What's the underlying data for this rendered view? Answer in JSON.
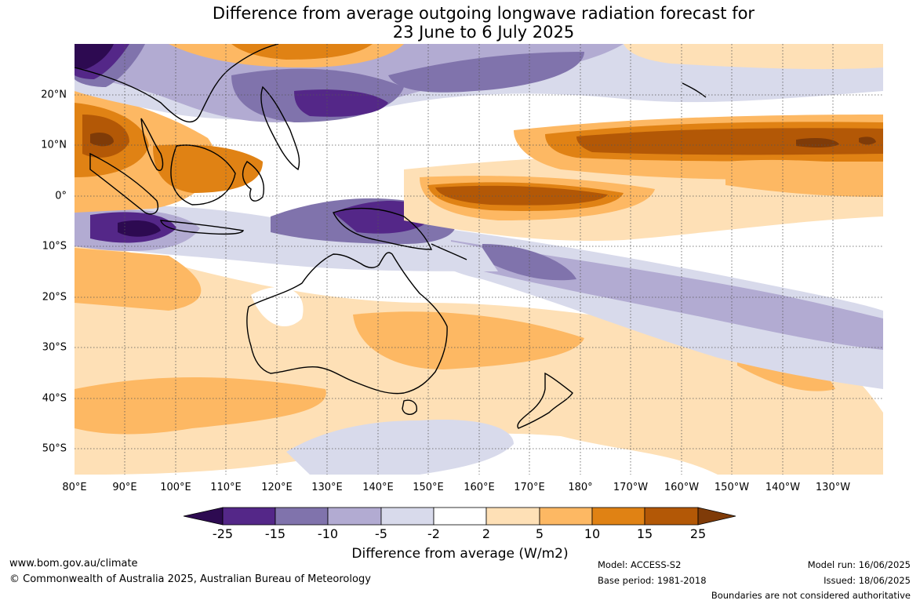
{
  "title": {
    "line1": "Difference from average outgoing longwave radiation forecast for",
    "line2": "23 June to 6 July 2025"
  },
  "map": {
    "lat_labels": [
      "20°N",
      "10°N",
      "0°",
      "10°S",
      "20°S",
      "30°S",
      "40°S",
      "50°S"
    ],
    "lon_labels": [
      "80°E",
      "90°E",
      "100°E",
      "110°E",
      "120°E",
      "130°E",
      "140°E",
      "150°E",
      "160°E",
      "170°E",
      "180°",
      "170°W",
      "160°W",
      "150°W",
      "140°W",
      "130°W"
    ],
    "gridlines": true
  },
  "colorbar": {
    "labels": [
      "-25",
      "-15",
      "-10",
      "-5",
      "-2",
      "2",
      "5",
      "10",
      "15",
      "25"
    ],
    "colors": [
      "#2d0a51",
      "#542788",
      "#8073ac",
      "#b2abd2",
      "#d8daeb",
      "#ffffff",
      "#fee0b6",
      "#fdb863",
      "#e08214",
      "#b35806",
      "#7f3b08"
    ],
    "title": "Difference from average (W/m2)"
  },
  "footer": {
    "website": "www.bom.gov.au/climate",
    "copyright": "© Commonwealth of Australia 2025, Australian Bureau of Meteorology",
    "model": "Model: ACCESS-S2",
    "base_period": "Base period: 1981-2018",
    "model_run": "Model run: 16/06/2025",
    "issued": "Issued: 18/06/2025",
    "disclaimer": "Boundaries are not considered authoritative"
  }
}
